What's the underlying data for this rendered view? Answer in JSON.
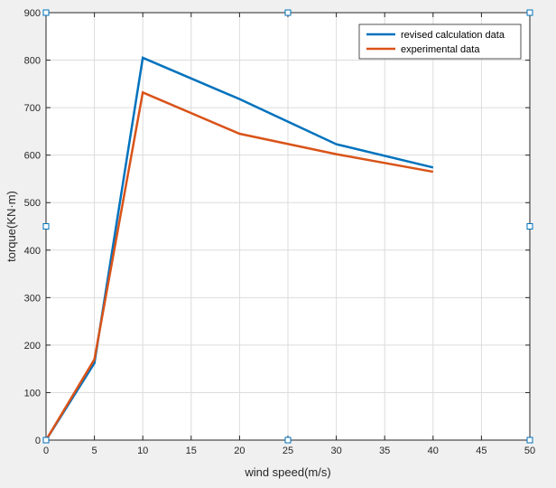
{
  "chart_data": {
    "type": "line",
    "xlabel": "wind speed(m/s)",
    "ylabel": "torque(KN·m)",
    "xlim": [
      0,
      50
    ],
    "ylim": [
      0,
      900
    ],
    "xticks": [
      0,
      5,
      10,
      15,
      20,
      25,
      30,
      35,
      40,
      45,
      50
    ],
    "yticks": [
      0,
      100,
      200,
      300,
      400,
      500,
      600,
      700,
      800,
      900
    ],
    "grid": true,
    "legend_location": "top-right",
    "series": [
      {
        "name": "revised calculation data",
        "color": "#0072bd",
        "x": [
          0,
          5,
          10,
          20,
          30,
          40
        ],
        "y": [
          0,
          162,
          805,
          718,
          623,
          574
        ]
      },
      {
        "name": "experimental data",
        "color": "#d95319",
        "x": [
          0,
          5,
          10,
          20,
          30,
          40
        ],
        "y": [
          0,
          170,
          732,
          645,
          602,
          565
        ]
      }
    ]
  }
}
